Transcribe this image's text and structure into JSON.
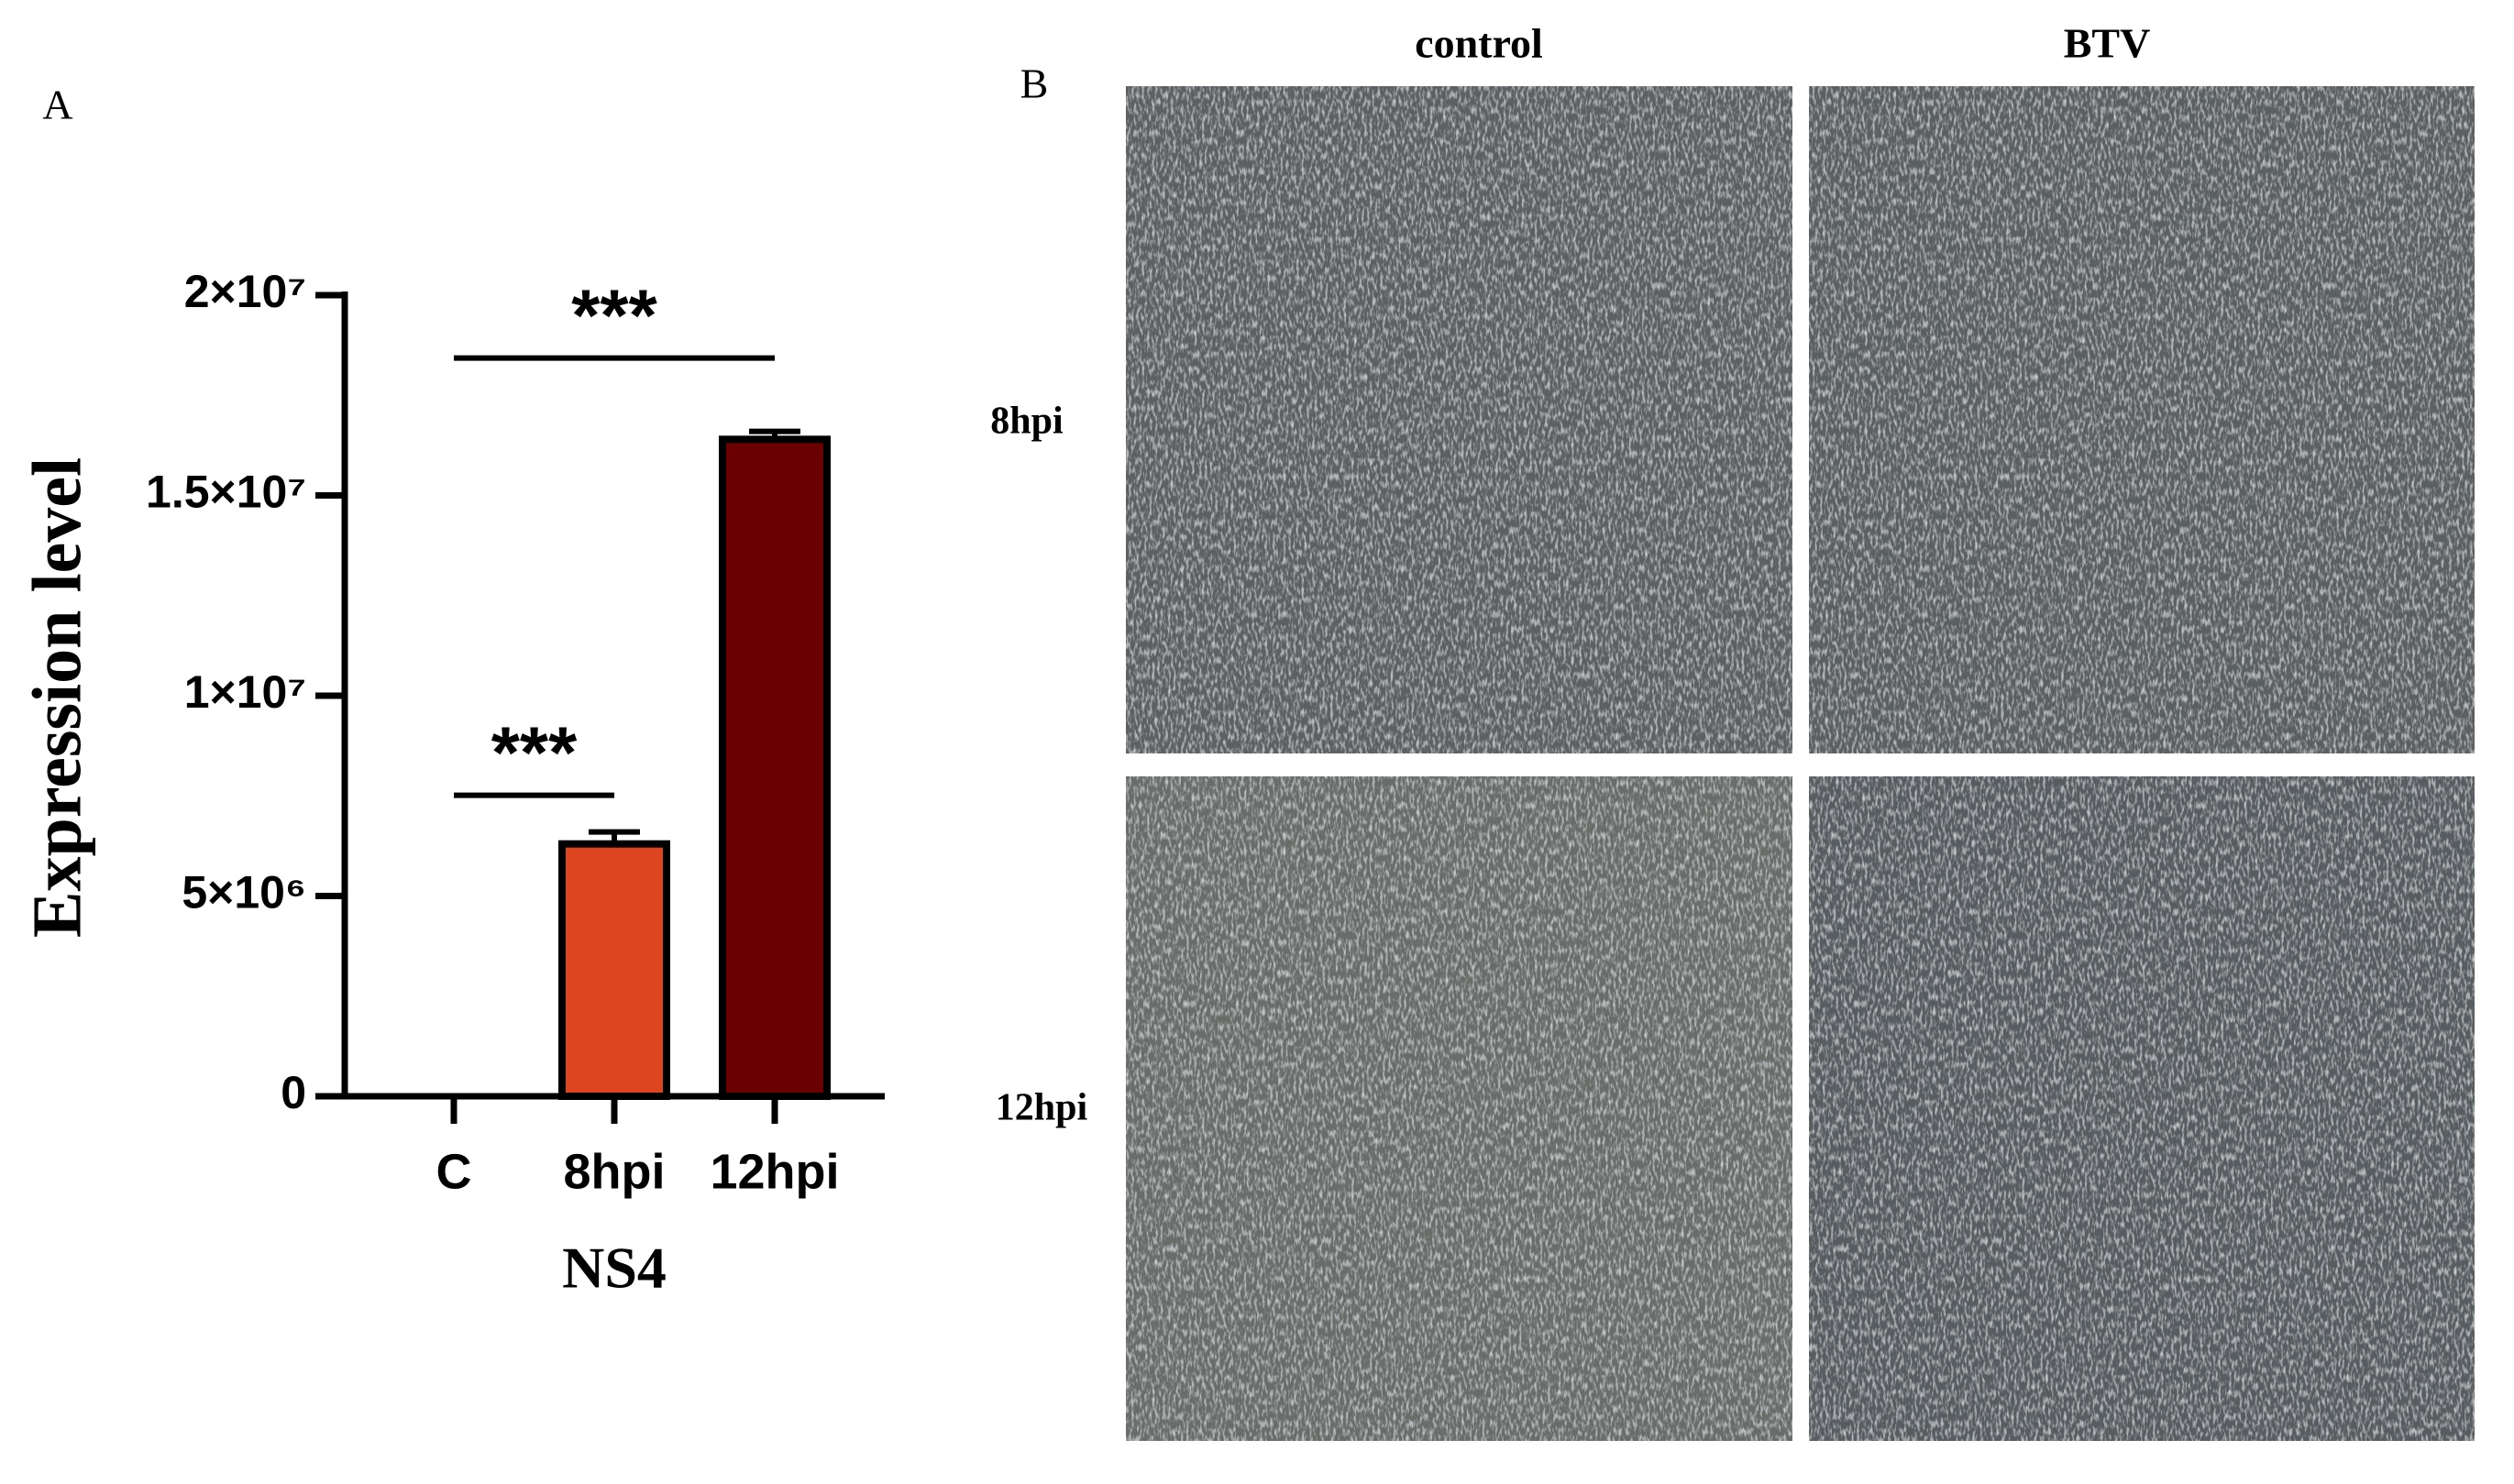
{
  "panel_labels": [
    "A",
    "B"
  ],
  "chart_data": {
    "type": "bar",
    "categories": [
      "C",
      "8hpi",
      "12hpi"
    ],
    "values": [
      0,
      6300000,
      16400000
    ],
    "errors": [
      0,
      300000,
      200000
    ],
    "colors": [
      "#000000",
      "#dc4520",
      "#6b0000"
    ],
    "ylabel": "Expression level",
    "xlabel": "NS4",
    "ylim": [
      0,
      20000000
    ],
    "yticks": [
      0,
      {
        "value": 5000000,
        "label": "5×10⁶"
      },
      {
        "value": 10000000,
        "label": "1×10⁷"
      },
      {
        "value": 15000000,
        "label": "1.5×10⁷"
      },
      {
        "value": 20000000,
        "label": "2×10⁷"
      }
    ],
    "annotations": [
      "***",
      "***"
    ]
  },
  "micrographs": {
    "columns": [
      "control",
      "BTV"
    ],
    "rows": [
      "8hpi",
      "12hpi"
    ]
  }
}
